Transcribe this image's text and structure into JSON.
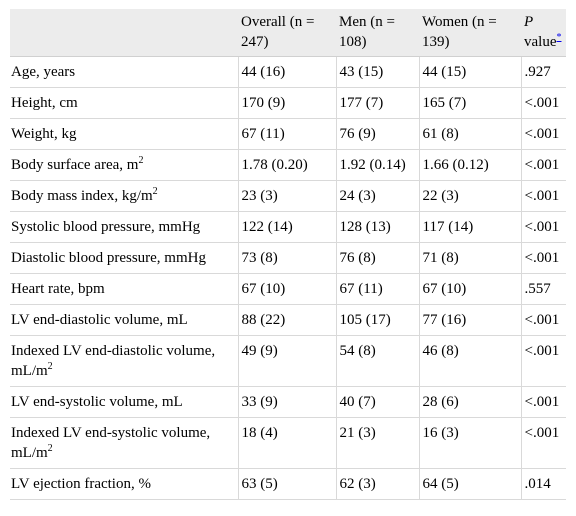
{
  "table": {
    "headers": {
      "col0": "",
      "col1": "Overall (n = 247)",
      "col2": "Men (n = 108)",
      "col3": "Women (n = 139)",
      "col4_italic": "P",
      "col4_rest": " value",
      "col4_footnote": "*"
    },
    "rows": [
      {
        "label": "Age, years",
        "sup": "",
        "overall": "44 (16)",
        "men": "43 (15)",
        "women": "44 (15)",
        "p": ".927"
      },
      {
        "label": "Height, cm",
        "sup": "",
        "overall": "170 (9)",
        "men": "177 (7)",
        "women": "165 (7)",
        "p": "<.001"
      },
      {
        "label": "Weight, kg",
        "sup": "",
        "overall": "67 (11)",
        "men": "76 (9)",
        "women": "61 (8)",
        "p": "<.001"
      },
      {
        "label": "Body surface area, m",
        "sup": "2",
        "overall": "1.78 (0.20)",
        "men": "1.92 (0.14)",
        "women": "1.66 (0.12)",
        "p": "<.001"
      },
      {
        "label": "Body mass index, kg/m",
        "sup": "2",
        "overall": "23 (3)",
        "men": "24 (3)",
        "women": "22 (3)",
        "p": "<.001"
      },
      {
        "label": "Systolic blood pressure, mmHg",
        "sup": "",
        "overall": "122 (14)",
        "men": "128 (13)",
        "women": "117 (14)",
        "p": "<.001"
      },
      {
        "label": "Diastolic blood pressure, mmHg",
        "sup": "",
        "overall": "73 (8)",
        "men": "76 (8)",
        "women": "71 (8)",
        "p": "<.001"
      },
      {
        "label": "Heart rate, bpm",
        "sup": "",
        "overall": "67 (10)",
        "men": "67 (11)",
        "women": "67 (10)",
        "p": ".557"
      },
      {
        "label": "LV end-diastolic volume, mL",
        "sup": "",
        "overall": "88 (22)",
        "men": "105 (17)",
        "women": "77 (16)",
        "p": "<.001"
      },
      {
        "label": "Indexed LV end-diastolic volume, mL/m",
        "sup": "2",
        "overall": "49 (9)",
        "men": "54 (8)",
        "women": "46 (8)",
        "p": "<.001"
      },
      {
        "label": "LV end-systolic volume, mL",
        "sup": "",
        "overall": "33 (9)",
        "men": "40 (7)",
        "women": "28 (6)",
        "p": "<.001"
      },
      {
        "label": "Indexed LV end-systolic volume, mL/m",
        "sup": "2",
        "overall": "18 (4)",
        "men": "21 (3)",
        "women": "16 (3)",
        "p": "<.001"
      },
      {
        "label": "LV ejection fraction, %",
        "sup": "",
        "overall": "63 (5)",
        "men": "62 (3)",
        "women": "64 (5)",
        "p": ".014"
      }
    ]
  }
}
